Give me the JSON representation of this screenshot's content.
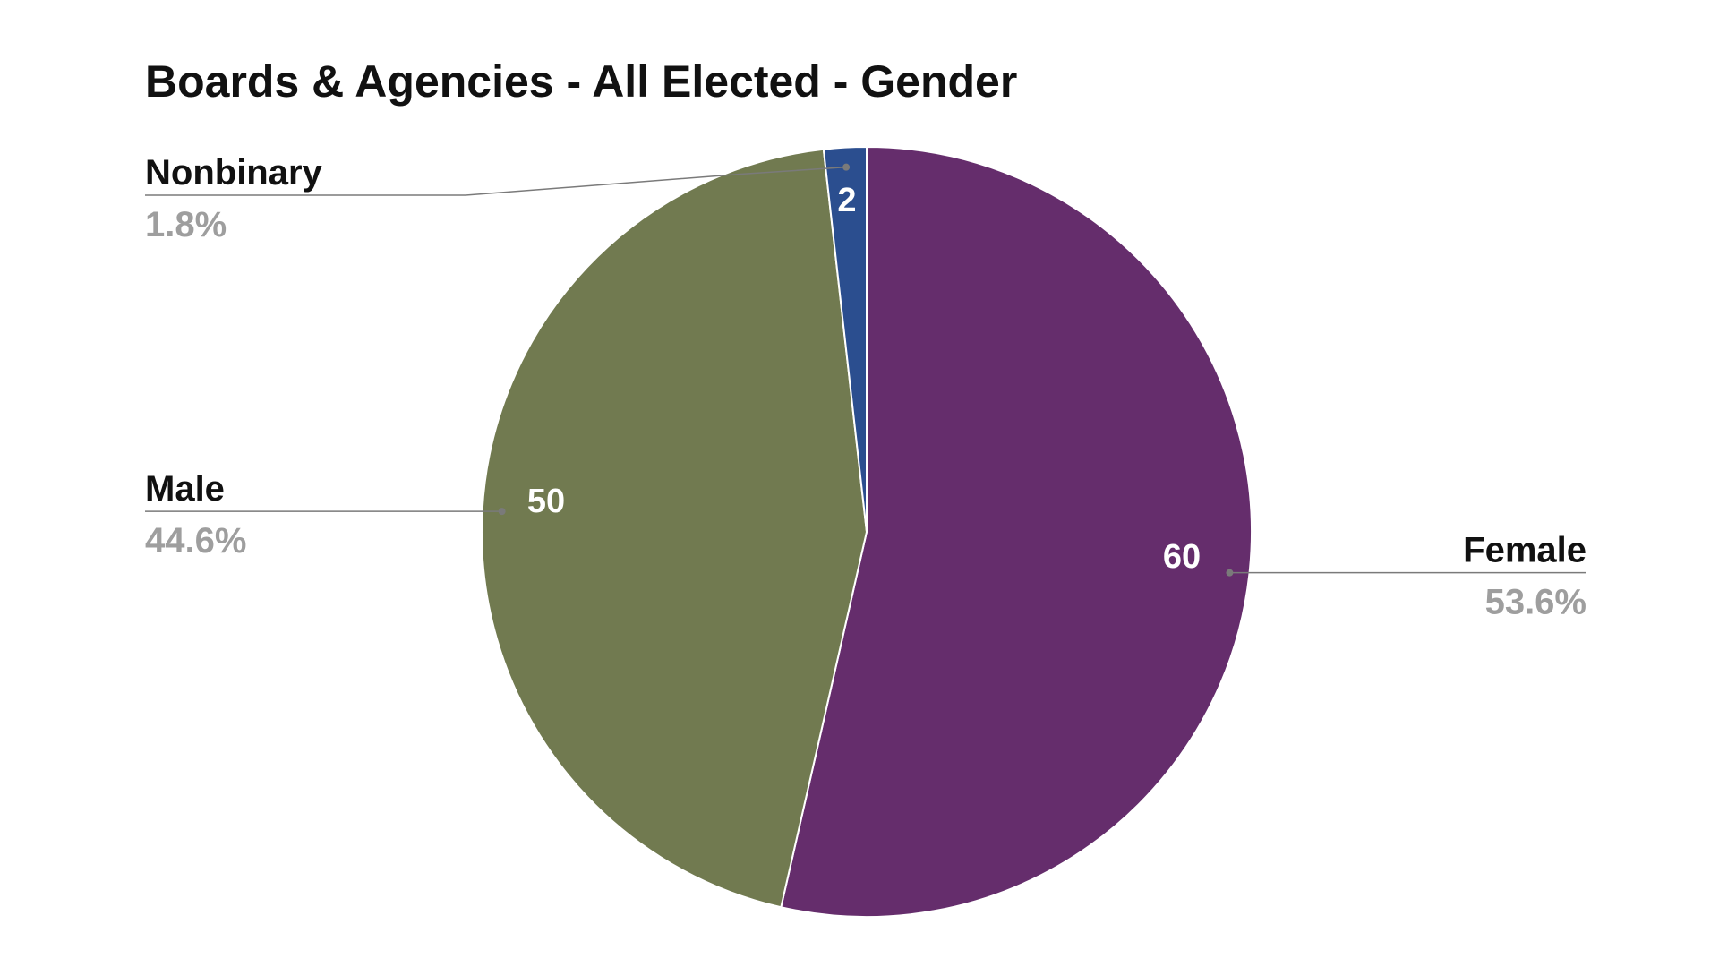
{
  "chart_data": {
    "type": "pie",
    "title": "Boards & Agencies - All Elected - Gender",
    "slices": [
      {
        "label": "Female",
        "value": 60,
        "percent_label": "53.6%",
        "color": "#652d6c"
      },
      {
        "label": "Male",
        "value": 50,
        "percent_label": "44.6%",
        "color": "#717a50"
      },
      {
        "label": "Nonbinary",
        "value": 2,
        "percent_label": "1.8%",
        "color": "#2b4e8f"
      }
    ],
    "start_angle_deg": 0,
    "direction": "clockwise",
    "label_color": "#111111",
    "percent_color": "#9e9e9e",
    "leader_color": "#7a7a7a"
  }
}
